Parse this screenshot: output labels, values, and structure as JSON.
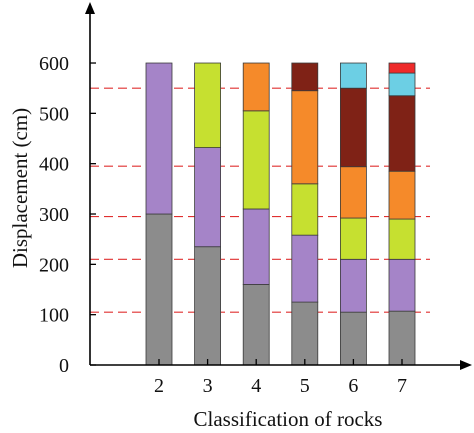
{
  "chart_data": {
    "type": "bar",
    "stacked": true,
    "title": "",
    "xlabel": "Classification of rocks",
    "ylabel": "Displacement (cm)",
    "ylim": [
      0,
      700
    ],
    "yticks": [
      0,
      100,
      200,
      300,
      400,
      500,
      600
    ],
    "categories": [
      "2",
      "3",
      "4",
      "5",
      "6",
      "7"
    ],
    "segment_colors": [
      "#8c8c8c",
      "#a584c8",
      "#c6e030",
      "#f58a2a",
      "#7f2216",
      "#6ccfe4",
      "#ee2a2a"
    ],
    "bars": [
      {
        "category": "2",
        "segments": [
          300,
          300
        ]
      },
      {
        "category": "3",
        "segments": [
          235,
          197,
          168
        ]
      },
      {
        "category": "4",
        "segments": [
          160,
          150,
          195,
          95
        ]
      },
      {
        "category": "5",
        "segments": [
          125,
          133,
          102,
          185,
          55
        ]
      },
      {
        "category": "6",
        "segments": [
          105,
          105,
          82,
          102,
          156,
          50
        ]
      },
      {
        "category": "7",
        "segments": [
          107,
          103,
          80,
          95,
          150,
          45,
          20
        ]
      }
    ],
    "reference_lines": [
      105,
      210,
      295,
      395,
      550
    ],
    "reference_line_color": "#e03030",
    "grid": false,
    "legend": "none"
  }
}
